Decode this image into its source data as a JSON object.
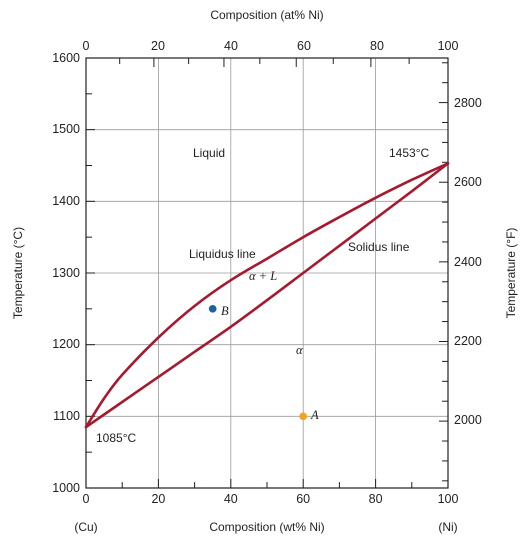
{
  "chart_data": {
    "type": "line",
    "title": "",
    "top_axis_label": "Composition (at% Ni)",
    "xlabel": "Composition (wt% Ni)",
    "ylabel_left": "Temperature (°C)",
    "ylabel_right": "Temperature (°F)",
    "xlim": [
      0,
      100
    ],
    "ylim": [
      1000,
      1600
    ],
    "x_ticks": [
      "0",
      "20",
      "40",
      "60",
      "80",
      "100"
    ],
    "top_ticks": [
      "0",
      "20",
      "40",
      "60",
      "80",
      "100"
    ],
    "y_ticks": [
      "1000",
      "1100",
      "1200",
      "1300",
      "1400",
      "1500",
      "1600"
    ],
    "right_ticks": [
      "2000",
      "2200",
      "2400",
      "2600",
      "2800"
    ],
    "endpoint_left": "(Cu)",
    "endpoint_right": "(Ni)",
    "grid": true,
    "series": [
      {
        "name": "Liquidus line",
        "x": [
          0,
          5,
          10,
          20,
          30,
          40,
          50,
          60,
          70,
          80,
          90,
          100
        ],
        "y": [
          1085,
          1125,
          1158,
          1210,
          1254,
          1290,
          1320,
          1350,
          1378,
          1405,
          1430,
          1453
        ]
      },
      {
        "name": "Solidus line",
        "x": [
          0,
          10,
          20,
          30,
          40,
          50,
          60,
          70,
          80,
          90,
          100
        ],
        "y": [
          1085,
          1120,
          1155,
          1190,
          1225,
          1262,
          1300,
          1338,
          1376,
          1414,
          1453
        ]
      }
    ],
    "points": [
      {
        "label": "B",
        "x": 35,
        "y": 1250,
        "color": "#1f5fa6"
      },
      {
        "label": "A",
        "x": 60,
        "y": 1100,
        "color": "#f5a21c"
      }
    ],
    "annotations": {
      "liquid": "Liquid",
      "alpha_l": "α + L",
      "alpha": "α",
      "ni_melt": "1453°C",
      "cu_melt": "1085°C"
    },
    "curve_color": "#a6192e"
  }
}
